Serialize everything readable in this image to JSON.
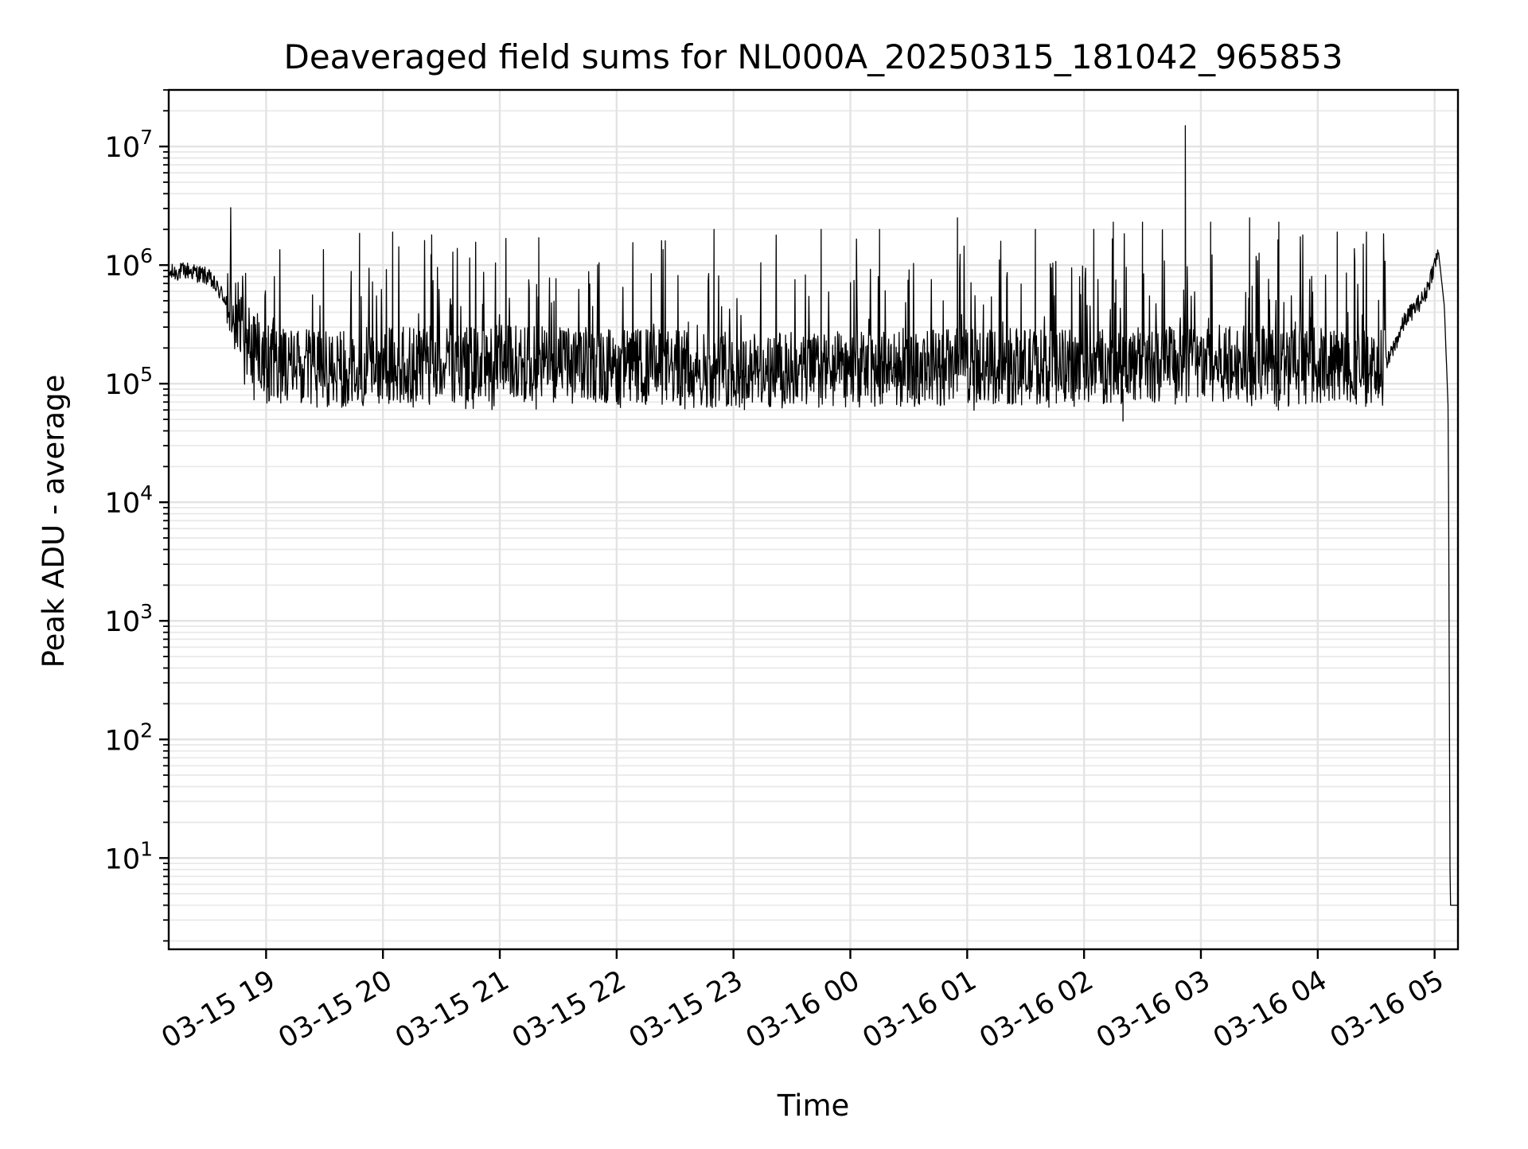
{
  "chart_data": {
    "type": "line",
    "title": "Deaveraged field sums for NL000A_20250315_181042_965853",
    "xlabel": "Time",
    "ylabel": "Peak ADU - average",
    "yscale": "log",
    "ylim": [
      1.7,
      30000000
    ],
    "xlim": [
      "2025-03-15 18:10",
      "2025-03-16 05:12"
    ],
    "grid": true,
    "legend": "none",
    "line_color": "#000000",
    "x_ticks": [
      {
        "value": "2025-03-15 19:00",
        "label": "03-15 19"
      },
      {
        "value": "2025-03-15 20:00",
        "label": "03-15 20"
      },
      {
        "value": "2025-03-15 21:00",
        "label": "03-15 21"
      },
      {
        "value": "2025-03-15 22:00",
        "label": "03-15 22"
      },
      {
        "value": "2025-03-15 23:00",
        "label": "03-15 23"
      },
      {
        "value": "2025-03-16 00:00",
        "label": "03-16 00"
      },
      {
        "value": "2025-03-16 01:00",
        "label": "03-16 01"
      },
      {
        "value": "2025-03-16 02:00",
        "label": "03-16 02"
      },
      {
        "value": "2025-03-16 03:00",
        "label": "03-16 03"
      },
      {
        "value": "2025-03-16 04:00",
        "label": "03-16 04"
      },
      {
        "value": "2025-03-16 05:00",
        "label": "03-16 05"
      }
    ],
    "y_ticks": [
      {
        "value": 10,
        "base": "10",
        "exp": "1"
      },
      {
        "value": 100,
        "base": "10",
        "exp": "2"
      },
      {
        "value": 1000,
        "base": "10",
        "exp": "3"
      },
      {
        "value": 10000,
        "base": "10",
        "exp": "4"
      },
      {
        "value": 100000,
        "base": "10",
        "exp": "5"
      },
      {
        "value": 1000000,
        "base": "10",
        "exp": "6"
      },
      {
        "value": 10000000,
        "base": "10",
        "exp": "7"
      }
    ],
    "series": [
      {
        "x": [
          "2025-03-15 18:10",
          "2025-03-15 18:20",
          "2025-03-15 18:30",
          "2025-03-15 18:40",
          "2025-03-15 18:50",
          "2025-03-15 19:00",
          "2025-03-15 19:30",
          "2025-03-15 20:00",
          "2025-03-15 21:00",
          "2025-03-15 22:00",
          "2025-03-15 23:00",
          "2025-03-16 00:00",
          "2025-03-16 01:00",
          "2025-03-16 02:00",
          "2025-03-16 03:00",
          "2025-03-16 04:00",
          "2025-03-16 04:35",
          "2025-03-16 04:45",
          "2025-03-16 04:55",
          "2025-03-16 05:02",
          "2025-03-16 05:05",
          "2025-03-16 05:07",
          "2025-03-16 05:08",
          "2025-03-16 05:12"
        ],
        "values": [
          850000,
          900000,
          800000,
          500000,
          250000,
          150000,
          130000,
          140000,
          150000,
          140000,
          130000,
          130000,
          140000,
          140000,
          150000,
          140000,
          140000,
          350000,
          550000,
          1300000,
          450000,
          60000,
          4,
          4
        ]
      }
    ],
    "spikes": [
      {
        "x": "2025-03-16 02:52",
        "value": 15000000
      },
      {
        "x": "2025-03-16 02:15",
        "value": 2300000
      },
      {
        "x": "2025-03-16 03:25",
        "value": 2500000
      },
      {
        "x": "2025-03-16 00:55",
        "value": 2500000
      },
      {
        "x": "2025-03-16 02:30",
        "value": 2300000
      },
      {
        "x": "2025-03-16 03:40",
        "value": 2300000
      },
      {
        "x": "2025-03-16 03:05",
        "value": 2300000
      },
      {
        "x": "2025-03-16 01:35",
        "value": 2000000
      },
      {
        "x": "2025-03-16 02:05",
        "value": 2000000
      },
      {
        "x": "2025-03-15 20:05",
        "value": 1900000
      },
      {
        "x": "2025-03-15 19:48",
        "value": 1850000
      },
      {
        "x": "2025-03-15 20:25",
        "value": 1800000
      },
      {
        "x": "2025-03-15 22:50",
        "value": 2000000
      },
      {
        "x": "2025-03-15 23:45",
        "value": 2000000
      },
      {
        "x": "2025-03-16 00:15",
        "value": 2000000
      },
      {
        "x": "2025-03-16 04:10",
        "value": 1900000
      },
      {
        "x": "2025-03-16 04:25",
        "value": 1900000
      },
      {
        "x": "2025-03-15 21:20",
        "value": 1700000
      },
      {
        "x": "2025-03-15 22:25",
        "value": 1600000
      }
    ],
    "noise_band": {
      "low": 70000,
      "high": 350000,
      "trough_min": 48000
    }
  }
}
